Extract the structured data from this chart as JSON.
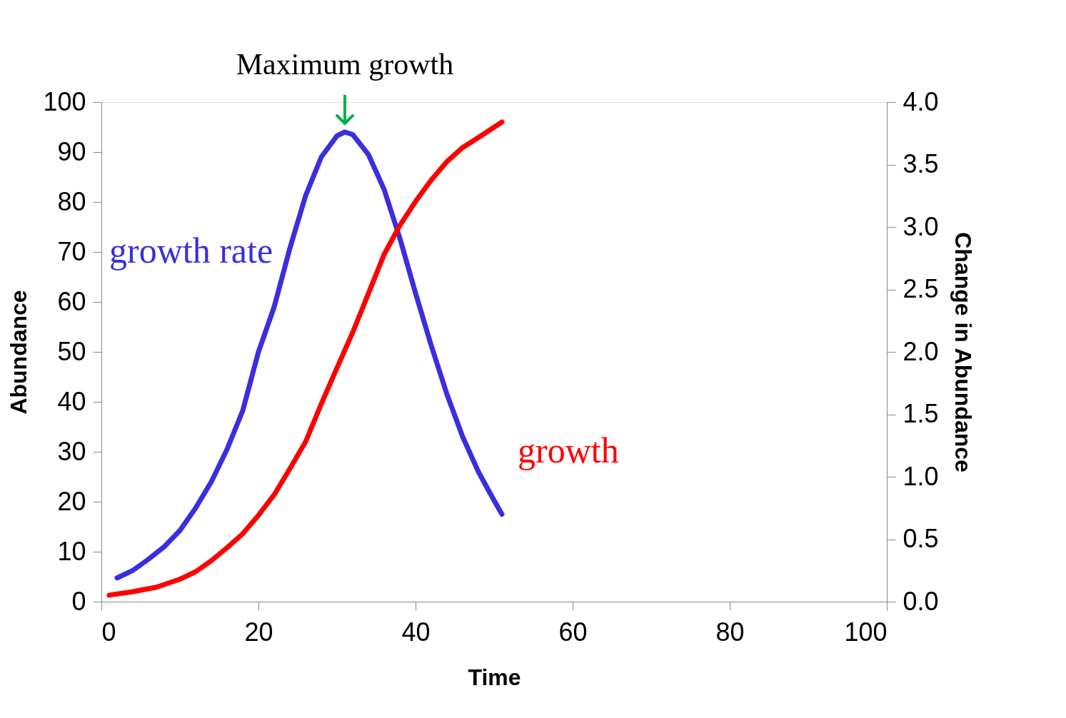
{
  "chart_data": {
    "type": "line",
    "xlabel": "Time",
    "ylabel": "Abundance",
    "y2label": "Change in Abundance",
    "annotations": [
      {
        "text": "Maximum growth",
        "x": 31
      }
    ],
    "xlim": [
      0,
      100
    ],
    "xticks": [
      0,
      20,
      40,
      60,
      80,
      100
    ],
    "ylim": [
      0,
      100
    ],
    "yticks": [
      0,
      10,
      20,
      30,
      40,
      50,
      60,
      70,
      80,
      90,
      100
    ],
    "y2lim": [
      0,
      4
    ],
    "y2ticks": [
      {
        "value": 0,
        "label": "0.0"
      },
      0.5,
      {
        "value": 1,
        "label": "1.0"
      },
      1.5,
      {
        "value": 2,
        "label": "2.0"
      },
      2.5,
      {
        "value": 3,
        "label": "3.0"
      },
      3.5,
      {
        "value": 4,
        "label": "4.0"
      }
    ],
    "grid": false,
    "marker": "none",
    "line_style": "solid",
    "series": [
      {
        "name": "growth rate",
        "color": "#3a2ee0",
        "axis": "y2",
        "x": [
          2,
          4,
          6,
          8,
          10,
          12,
          14,
          16,
          18,
          20,
          22,
          24,
          26,
          28,
          30,
          31,
          32,
          34,
          36,
          38,
          40,
          42,
          44,
          46,
          48,
          50,
          51
        ],
        "values": [
          0.19,
          0.25,
          0.34,
          0.44,
          0.57,
          0.75,
          0.96,
          1.22,
          1.53,
          2.0,
          2.36,
          2.83,
          3.25,
          3.56,
          3.73,
          3.76,
          3.74,
          3.58,
          3.3,
          2.91,
          2.47,
          2.05,
          1.66,
          1.32,
          1.04,
          0.81,
          0.7
        ]
      },
      {
        "name": "growth",
        "color": "#ff0000",
        "axis": "y",
        "x": [
          1,
          4,
          7,
          10,
          12,
          14,
          16,
          18,
          20,
          22,
          24,
          26,
          28,
          30,
          32,
          34,
          36,
          38,
          40,
          42,
          44,
          46,
          48,
          51
        ],
        "values": [
          1.3,
          2,
          2.9,
          4.5,
          6,
          8.2,
          10.8,
          13.6,
          17.3,
          21.4,
          26.6,
          32,
          39.6,
          46.8,
          53.9,
          61.7,
          69.5,
          75.3,
          80.1,
          84.4,
          88.1,
          90.9,
          92.9,
          96
        ]
      }
    ]
  }
}
